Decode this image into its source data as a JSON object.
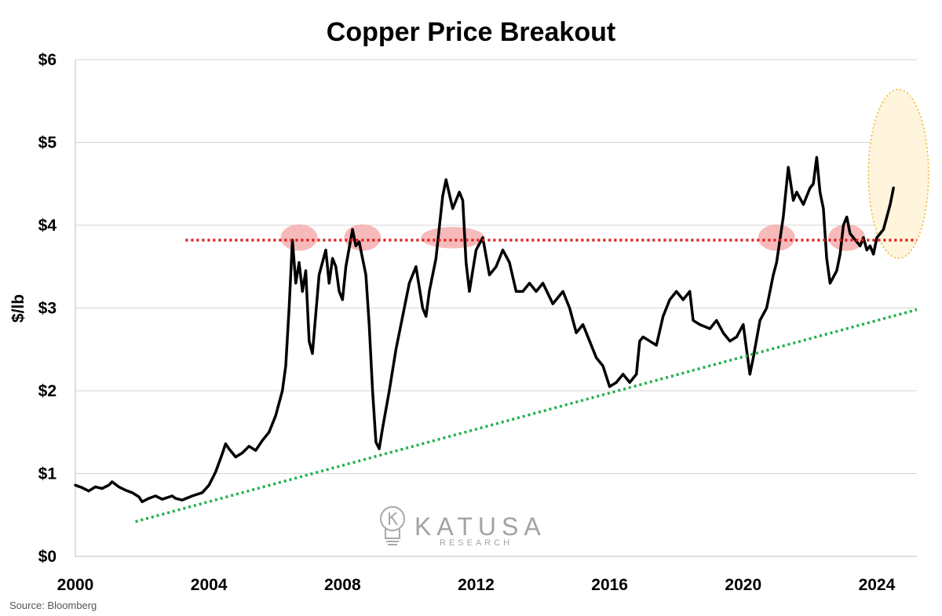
{
  "chart_data": {
    "type": "line",
    "title": "Copper Price Breakout",
    "ylabel": "$/lb",
    "xlabel": "",
    "xlim": [
      2000,
      2025.2
    ],
    "ylim": [
      0,
      6
    ],
    "grid": {
      "horizontal": true,
      "vertical": false
    },
    "x_ticks": [
      2000,
      2004,
      2008,
      2012,
      2016,
      2020,
      2024
    ],
    "y_ticks": [
      {
        "value": 0,
        "label": "$0"
      },
      {
        "value": 1,
        "label": "$1"
      },
      {
        "value": 2,
        "label": "$2"
      },
      {
        "value": 3,
        "label": "$3"
      },
      {
        "value": 4,
        "label": "$4"
      },
      {
        "value": 5,
        "label": "$5"
      },
      {
        "value": 6,
        "label": "$6"
      }
    ],
    "series": [
      {
        "color": "#000000",
        "points": [
          [
            2000.0,
            0.86
          ],
          [
            2000.2,
            0.83
          ],
          [
            2000.4,
            0.79
          ],
          [
            2000.6,
            0.84
          ],
          [
            2000.8,
            0.82
          ],
          [
            2001.0,
            0.86
          ],
          [
            2001.1,
            0.9
          ],
          [
            2001.3,
            0.84
          ],
          [
            2001.5,
            0.8
          ],
          [
            2001.7,
            0.77
          ],
          [
            2001.9,
            0.72
          ],
          [
            2002.0,
            0.66
          ],
          [
            2002.2,
            0.7
          ],
          [
            2002.4,
            0.73
          ],
          [
            2002.6,
            0.69
          ],
          [
            2002.9,
            0.73
          ],
          [
            2003.0,
            0.7
          ],
          [
            2003.2,
            0.68
          ],
          [
            2003.5,
            0.73
          ],
          [
            2003.8,
            0.77
          ],
          [
            2004.0,
            0.86
          ],
          [
            2004.2,
            1.02
          ],
          [
            2004.4,
            1.24
          ],
          [
            2004.5,
            1.36
          ],
          [
            2004.6,
            1.3
          ],
          [
            2004.8,
            1.2
          ],
          [
            2005.0,
            1.25
          ],
          [
            2005.2,
            1.33
          ],
          [
            2005.4,
            1.28
          ],
          [
            2005.6,
            1.4
          ],
          [
            2005.8,
            1.5
          ],
          [
            2006.0,
            1.7
          ],
          [
            2006.2,
            2.0
          ],
          [
            2006.3,
            2.3
          ],
          [
            2006.4,
            3.0
          ],
          [
            2006.5,
            3.82
          ],
          [
            2006.6,
            3.3
          ],
          [
            2006.7,
            3.55
          ],
          [
            2006.8,
            3.2
          ],
          [
            2006.9,
            3.45
          ],
          [
            2007.0,
            2.6
          ],
          [
            2007.1,
            2.45
          ],
          [
            2007.3,
            3.4
          ],
          [
            2007.5,
            3.7
          ],
          [
            2007.6,
            3.3
          ],
          [
            2007.7,
            3.6
          ],
          [
            2007.8,
            3.5
          ],
          [
            2007.9,
            3.2
          ],
          [
            2008.0,
            3.1
          ],
          [
            2008.1,
            3.5
          ],
          [
            2008.3,
            3.95
          ],
          [
            2008.4,
            3.75
          ],
          [
            2008.5,
            3.8
          ],
          [
            2008.6,
            3.6
          ],
          [
            2008.7,
            3.4
          ],
          [
            2008.8,
            2.8
          ],
          [
            2008.9,
            2.0
          ],
          [
            2009.0,
            1.38
          ],
          [
            2009.1,
            1.3
          ],
          [
            2009.2,
            1.55
          ],
          [
            2009.4,
            2.0
          ],
          [
            2009.6,
            2.5
          ],
          [
            2009.8,
            2.9
          ],
          [
            2010.0,
            3.3
          ],
          [
            2010.2,
            3.5
          ],
          [
            2010.4,
            3.0
          ],
          [
            2010.5,
            2.9
          ],
          [
            2010.6,
            3.2
          ],
          [
            2010.8,
            3.6
          ],
          [
            2011.0,
            4.35
          ],
          [
            2011.1,
            4.55
          ],
          [
            2011.3,
            4.2
          ],
          [
            2011.5,
            4.4
          ],
          [
            2011.6,
            4.3
          ],
          [
            2011.7,
            3.55
          ],
          [
            2011.8,
            3.2
          ],
          [
            2011.9,
            3.45
          ],
          [
            2012.0,
            3.7
          ],
          [
            2012.2,
            3.85
          ],
          [
            2012.4,
            3.4
          ],
          [
            2012.6,
            3.5
          ],
          [
            2012.8,
            3.7
          ],
          [
            2013.0,
            3.55
          ],
          [
            2013.2,
            3.2
          ],
          [
            2013.4,
            3.2
          ],
          [
            2013.6,
            3.3
          ],
          [
            2013.8,
            3.2
          ],
          [
            2014.0,
            3.3
          ],
          [
            2014.3,
            3.05
          ],
          [
            2014.6,
            3.2
          ],
          [
            2014.8,
            3.0
          ],
          [
            2015.0,
            2.7
          ],
          [
            2015.2,
            2.8
          ],
          [
            2015.4,
            2.6
          ],
          [
            2015.6,
            2.4
          ],
          [
            2015.8,
            2.3
          ],
          [
            2016.0,
            2.05
          ],
          [
            2016.2,
            2.1
          ],
          [
            2016.4,
            2.2
          ],
          [
            2016.6,
            2.1
          ],
          [
            2016.8,
            2.2
          ],
          [
            2016.9,
            2.6
          ],
          [
            2017.0,
            2.65
          ],
          [
            2017.2,
            2.6
          ],
          [
            2017.4,
            2.55
          ],
          [
            2017.6,
            2.9
          ],
          [
            2017.8,
            3.1
          ],
          [
            2018.0,
            3.2
          ],
          [
            2018.2,
            3.1
          ],
          [
            2018.4,
            3.2
          ],
          [
            2018.5,
            2.85
          ],
          [
            2018.7,
            2.8
          ],
          [
            2019.0,
            2.75
          ],
          [
            2019.2,
            2.85
          ],
          [
            2019.4,
            2.7
          ],
          [
            2019.6,
            2.6
          ],
          [
            2019.8,
            2.65
          ],
          [
            2020.0,
            2.8
          ],
          [
            2020.1,
            2.5
          ],
          [
            2020.2,
            2.2
          ],
          [
            2020.3,
            2.4
          ],
          [
            2020.5,
            2.85
          ],
          [
            2020.7,
            3.0
          ],
          [
            2020.9,
            3.4
          ],
          [
            2021.0,
            3.55
          ],
          [
            2021.2,
            4.1
          ],
          [
            2021.35,
            4.7
          ],
          [
            2021.5,
            4.3
          ],
          [
            2021.6,
            4.4
          ],
          [
            2021.8,
            4.25
          ],
          [
            2022.0,
            4.45
          ],
          [
            2022.1,
            4.5
          ],
          [
            2022.2,
            4.82
          ],
          [
            2022.3,
            4.4
          ],
          [
            2022.4,
            4.2
          ],
          [
            2022.5,
            3.6
          ],
          [
            2022.6,
            3.3
          ],
          [
            2022.8,
            3.45
          ],
          [
            2022.9,
            3.65
          ],
          [
            2023.0,
            4.0
          ],
          [
            2023.1,
            4.1
          ],
          [
            2023.2,
            3.9
          ],
          [
            2023.4,
            3.8
          ],
          [
            2023.5,
            3.75
          ],
          [
            2023.6,
            3.85
          ],
          [
            2023.7,
            3.7
          ],
          [
            2023.8,
            3.75
          ],
          [
            2023.9,
            3.65
          ],
          [
            2024.0,
            3.85
          ],
          [
            2024.1,
            3.9
          ],
          [
            2024.2,
            3.95
          ],
          [
            2024.3,
            4.1
          ],
          [
            2024.4,
            4.25
          ],
          [
            2024.5,
            4.45
          ]
        ]
      }
    ],
    "annotations": [
      {
        "type": "resistance-line",
        "color": "#e31a1c",
        "style": "dotted",
        "from": [
          2003.3,
          3.82
        ],
        "to": [
          2025.2,
          3.82
        ]
      },
      {
        "type": "support-line",
        "color": "#1db04a",
        "style": "dotted",
        "from": [
          2001.8,
          0.42
        ],
        "to": [
          2025.2,
          2.98
        ]
      },
      {
        "type": "highlight",
        "color": "#f4a3a3",
        "center": [
          2006.7,
          3.85
        ],
        "radius": [
          0.55,
          0.16
        ]
      },
      {
        "type": "highlight",
        "color": "#f4a3a3",
        "center": [
          2008.6,
          3.85
        ],
        "radius": [
          0.55,
          0.16
        ]
      },
      {
        "type": "highlight",
        "color": "#f4a3a3",
        "center": [
          2011.3,
          3.85
        ],
        "radius": [
          0.95,
          0.13
        ]
      },
      {
        "type": "highlight",
        "color": "#f4a3a3",
        "center": [
          2021.0,
          3.85
        ],
        "radius": [
          0.55,
          0.16
        ]
      },
      {
        "type": "highlight",
        "color": "#f4a3a3",
        "center": [
          2023.1,
          3.85
        ],
        "radius": [
          0.55,
          0.16
        ]
      },
      {
        "type": "breakout-zone",
        "color": "#fff4dc",
        "stroke": "#e8b92b",
        "center": [
          2024.65,
          4.62
        ],
        "radius": [
          0.9,
          1.02
        ]
      }
    ]
  },
  "source": "Source: Bloomberg",
  "logo": {
    "name": "KATUSA",
    "sub": "RESEARCH",
    "icon": "lightbulb-icon"
  }
}
